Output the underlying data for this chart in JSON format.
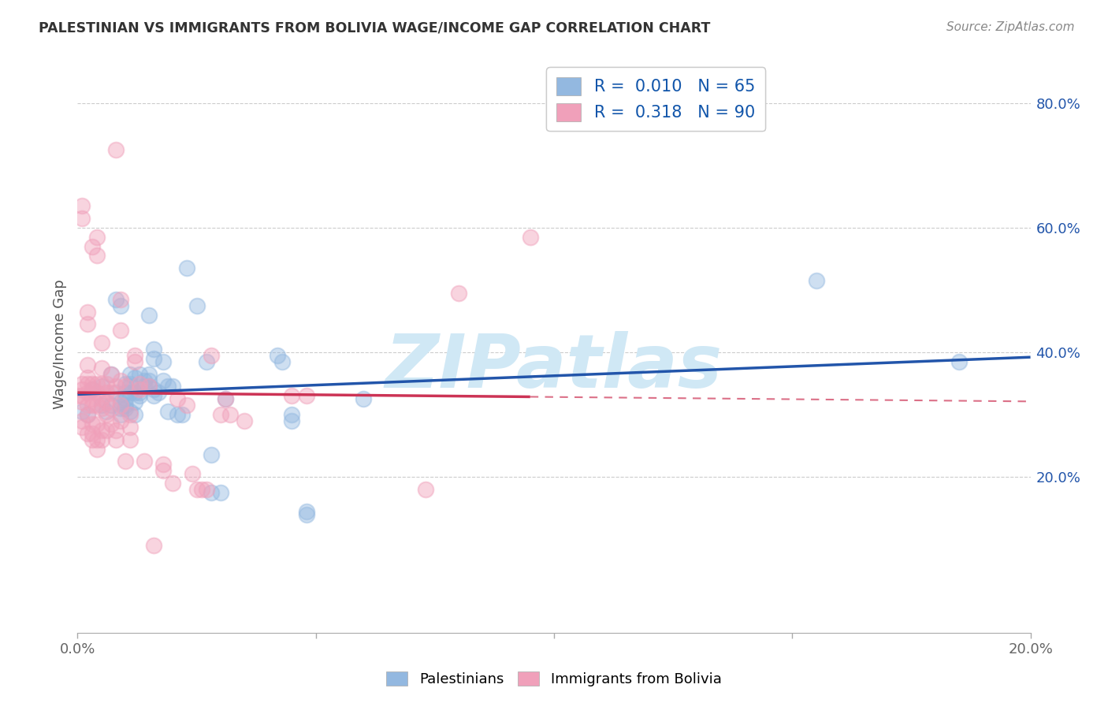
{
  "title": "PALESTINIAN VS IMMIGRANTS FROM BOLIVIA WAGE/INCOME GAP CORRELATION CHART",
  "source": "Source: ZipAtlas.com",
  "ylabel": "Wage/Income Gap",
  "x_min": 0.0,
  "x_max": 0.2,
  "y_min": -0.05,
  "y_max": 0.875,
  "x_ticks": [
    0.0,
    0.05,
    0.1,
    0.15,
    0.2
  ],
  "x_tick_labels": [
    "0.0%",
    "",
    "",
    "",
    "20.0%"
  ],
  "y_ticks": [
    0.2,
    0.4,
    0.6,
    0.8
  ],
  "y_tick_labels": [
    "20.0%",
    "40.0%",
    "60.0%",
    "80.0%"
  ],
  "blue_color": "#93b8e0",
  "pink_color": "#f0a0ba",
  "trend_blue_color": "#2255aa",
  "trend_pink_color": "#cc3355",
  "watermark": "ZIPatlas",
  "watermark_color": "#d0e8f5",
  "R_blue": 0.01,
  "R_pink": 0.318,
  "N_blue": 65,
  "N_pink": 90,
  "blue_points": [
    [
      0.001,
      0.305
    ],
    [
      0.002,
      0.3
    ],
    [
      0.003,
      0.34
    ],
    [
      0.005,
      0.315
    ],
    [
      0.005,
      0.345
    ],
    [
      0.006,
      0.305
    ],
    [
      0.007,
      0.365
    ],
    [
      0.007,
      0.315
    ],
    [
      0.008,
      0.485
    ],
    [
      0.008,
      0.335
    ],
    [
      0.009,
      0.475
    ],
    [
      0.009,
      0.32
    ],
    [
      0.009,
      0.31
    ],
    [
      0.009,
      0.3
    ],
    [
      0.01,
      0.35
    ],
    [
      0.01,
      0.335
    ],
    [
      0.01,
      0.325
    ],
    [
      0.01,
      0.315
    ],
    [
      0.01,
      0.31
    ],
    [
      0.011,
      0.365
    ],
    [
      0.011,
      0.35
    ],
    [
      0.011,
      0.345
    ],
    [
      0.011,
      0.335
    ],
    [
      0.011,
      0.305
    ],
    [
      0.012,
      0.36
    ],
    [
      0.012,
      0.335
    ],
    [
      0.012,
      0.32
    ],
    [
      0.012,
      0.3
    ],
    [
      0.013,
      0.365
    ],
    [
      0.013,
      0.335
    ],
    [
      0.013,
      0.33
    ],
    [
      0.014,
      0.355
    ],
    [
      0.014,
      0.345
    ],
    [
      0.015,
      0.46
    ],
    [
      0.015,
      0.365
    ],
    [
      0.015,
      0.355
    ],
    [
      0.015,
      0.345
    ],
    [
      0.016,
      0.405
    ],
    [
      0.016,
      0.39
    ],
    [
      0.016,
      0.34
    ],
    [
      0.016,
      0.33
    ],
    [
      0.017,
      0.335
    ],
    [
      0.018,
      0.385
    ],
    [
      0.018,
      0.355
    ],
    [
      0.019,
      0.345
    ],
    [
      0.019,
      0.305
    ],
    [
      0.02,
      0.345
    ],
    [
      0.021,
      0.3
    ],
    [
      0.022,
      0.3
    ],
    [
      0.023,
      0.535
    ],
    [
      0.025,
      0.475
    ],
    [
      0.027,
      0.385
    ],
    [
      0.028,
      0.235
    ],
    [
      0.028,
      0.175
    ],
    [
      0.03,
      0.175
    ],
    [
      0.031,
      0.325
    ],
    [
      0.042,
      0.395
    ],
    [
      0.043,
      0.385
    ],
    [
      0.045,
      0.3
    ],
    [
      0.045,
      0.29
    ],
    [
      0.048,
      0.145
    ],
    [
      0.048,
      0.14
    ],
    [
      0.06,
      0.325
    ],
    [
      0.155,
      0.515
    ],
    [
      0.185,
      0.385
    ]
  ],
  "pink_points": [
    [
      0.0,
      0.33
    ],
    [
      0.001,
      0.635
    ],
    [
      0.001,
      0.615
    ],
    [
      0.001,
      0.35
    ],
    [
      0.001,
      0.34
    ],
    [
      0.001,
      0.33
    ],
    [
      0.001,
      0.32
    ],
    [
      0.001,
      0.29
    ],
    [
      0.001,
      0.28
    ],
    [
      0.002,
      0.465
    ],
    [
      0.002,
      0.445
    ],
    [
      0.002,
      0.38
    ],
    [
      0.002,
      0.36
    ],
    [
      0.002,
      0.35
    ],
    [
      0.002,
      0.335
    ],
    [
      0.002,
      0.315
    ],
    [
      0.002,
      0.3
    ],
    [
      0.002,
      0.27
    ],
    [
      0.003,
      0.57
    ],
    [
      0.003,
      0.35
    ],
    [
      0.003,
      0.34
    ],
    [
      0.003,
      0.325
    ],
    [
      0.003,
      0.315
    ],
    [
      0.003,
      0.285
    ],
    [
      0.003,
      0.27
    ],
    [
      0.003,
      0.26
    ],
    [
      0.004,
      0.585
    ],
    [
      0.004,
      0.555
    ],
    [
      0.004,
      0.35
    ],
    [
      0.004,
      0.335
    ],
    [
      0.004,
      0.315
    ],
    [
      0.004,
      0.285
    ],
    [
      0.004,
      0.26
    ],
    [
      0.004,
      0.245
    ],
    [
      0.005,
      0.415
    ],
    [
      0.005,
      0.375
    ],
    [
      0.005,
      0.35
    ],
    [
      0.005,
      0.325
    ],
    [
      0.005,
      0.31
    ],
    [
      0.005,
      0.275
    ],
    [
      0.005,
      0.26
    ],
    [
      0.006,
      0.35
    ],
    [
      0.006,
      0.335
    ],
    [
      0.006,
      0.32
    ],
    [
      0.006,
      0.3
    ],
    [
      0.006,
      0.275
    ],
    [
      0.007,
      0.365
    ],
    [
      0.007,
      0.335
    ],
    [
      0.007,
      0.31
    ],
    [
      0.007,
      0.285
    ],
    [
      0.008,
      0.725
    ],
    [
      0.008,
      0.345
    ],
    [
      0.008,
      0.275
    ],
    [
      0.008,
      0.26
    ],
    [
      0.009,
      0.485
    ],
    [
      0.009,
      0.435
    ],
    [
      0.009,
      0.355
    ],
    [
      0.009,
      0.315
    ],
    [
      0.009,
      0.29
    ],
    [
      0.01,
      0.345
    ],
    [
      0.01,
      0.225
    ],
    [
      0.011,
      0.3
    ],
    [
      0.011,
      0.28
    ],
    [
      0.011,
      0.26
    ],
    [
      0.012,
      0.395
    ],
    [
      0.012,
      0.385
    ],
    [
      0.013,
      0.35
    ],
    [
      0.013,
      0.34
    ],
    [
      0.014,
      0.225
    ],
    [
      0.015,
      0.345
    ],
    [
      0.016,
      0.09
    ],
    [
      0.018,
      0.22
    ],
    [
      0.018,
      0.21
    ],
    [
      0.02,
      0.19
    ],
    [
      0.021,
      0.325
    ],
    [
      0.023,
      0.315
    ],
    [
      0.024,
      0.205
    ],
    [
      0.025,
      0.18
    ],
    [
      0.026,
      0.18
    ],
    [
      0.027,
      0.18
    ],
    [
      0.028,
      0.395
    ],
    [
      0.03,
      0.3
    ],
    [
      0.031,
      0.325
    ],
    [
      0.032,
      0.3
    ],
    [
      0.035,
      0.29
    ],
    [
      0.045,
      0.33
    ],
    [
      0.048,
      0.33
    ],
    [
      0.073,
      0.18
    ],
    [
      0.08,
      0.495
    ],
    [
      0.095,
      0.585
    ]
  ]
}
